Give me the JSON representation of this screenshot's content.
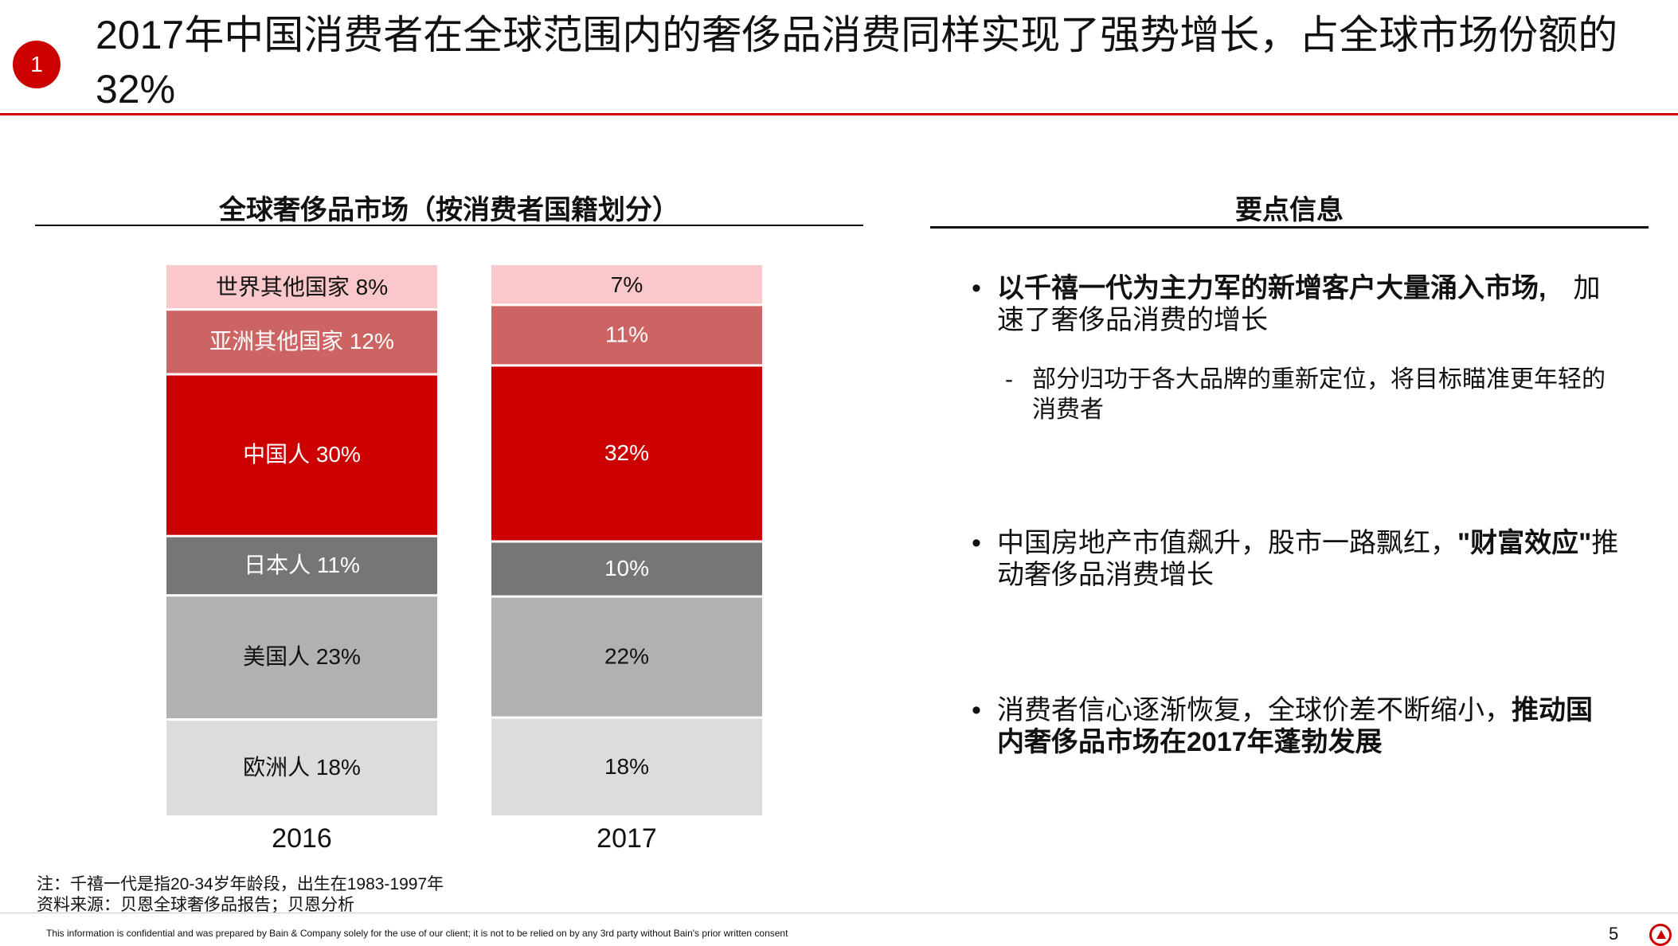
{
  "header": {
    "badge_number": "1",
    "title": "2017年中国消费者在全球范围内的奢侈品消费同样实现了强势增长，占全球市场份额的32%"
  },
  "chart_data": {
    "type": "bar",
    "stacked": true,
    "title": "全球奢侈品市场（按消费者国籍划分）",
    "categories": [
      "2016",
      "2017"
    ],
    "unit": "%",
    "series": [
      {
        "name": "欧洲人",
        "values": [
          18,
          18
        ],
        "labels": [
          "欧洲人 18%",
          "18%"
        ],
        "color": "#dcdcdc",
        "text_color": "#111111"
      },
      {
        "name": "美国人",
        "values": [
          23,
          22
        ],
        "labels": [
          "美国人 23%",
          "22%"
        ],
        "color": "#b1b1b1",
        "text_color": "#111111"
      },
      {
        "name": "日本人",
        "values": [
          11,
          10
        ],
        "labels": [
          "日本人 11%",
          "10%"
        ],
        "color": "#767676",
        "text_color": "#ffffff"
      },
      {
        "name": "中国人",
        "values": [
          30,
          32
        ],
        "labels": [
          "中国人 30%",
          "32%"
        ],
        "color": "#cc0000",
        "text_color": "#ffffff"
      },
      {
        "name": "亚洲其他国家",
        "values": [
          12,
          11
        ],
        "labels": [
          "亚洲其他国家 12%",
          "11%"
        ],
        "color": "#cd6464",
        "text_color": "#ffffff"
      },
      {
        "name": "世界其他国家",
        "values": [
          8,
          7
        ],
        "labels": [
          "世界其他国家 8%",
          "7%"
        ],
        "color": "#fac8cb",
        "text_color": "#111111"
      }
    ]
  },
  "key_points": {
    "title": "要点信息",
    "bullet1": {
      "bold": "以千禧一代为主力军的新增客户大量涌入市场,",
      "line1_rest": "加",
      "line2": "速了奢侈品消费的增长"
    },
    "sub1": {
      "dash": "-",
      "line1": "部分归功于各大品牌的重新定位，将目标瞄准更年轻的",
      "line2": "消费者"
    },
    "bullet2": {
      "pre": "中国房地产市值飙升，股市一路飘红，",
      "bold": "\"财富效应\"",
      "post": "推",
      "line2": "动奢侈品消费增长"
    },
    "bullet3": {
      "pre": "消费者信心逐渐恢复，全球价差不断缩小，",
      "bold": "推动国",
      "line2_bold": "内奢侈品市场在2017年蓬勃发展"
    },
    "bullet_symbol": "•"
  },
  "notes": {
    "note": "注：千禧一代是指20-34岁年龄段，出生在1983-1997年",
    "source": "资料来源：贝恩全球奢侈品报告；贝恩分析"
  },
  "footer": {
    "disclaimer": "This information is confidential and was prepared by Bain & Company solely for the use of our client; it is not to be relied on by any 3rd party without Bain's prior written consent",
    "page": "5"
  }
}
